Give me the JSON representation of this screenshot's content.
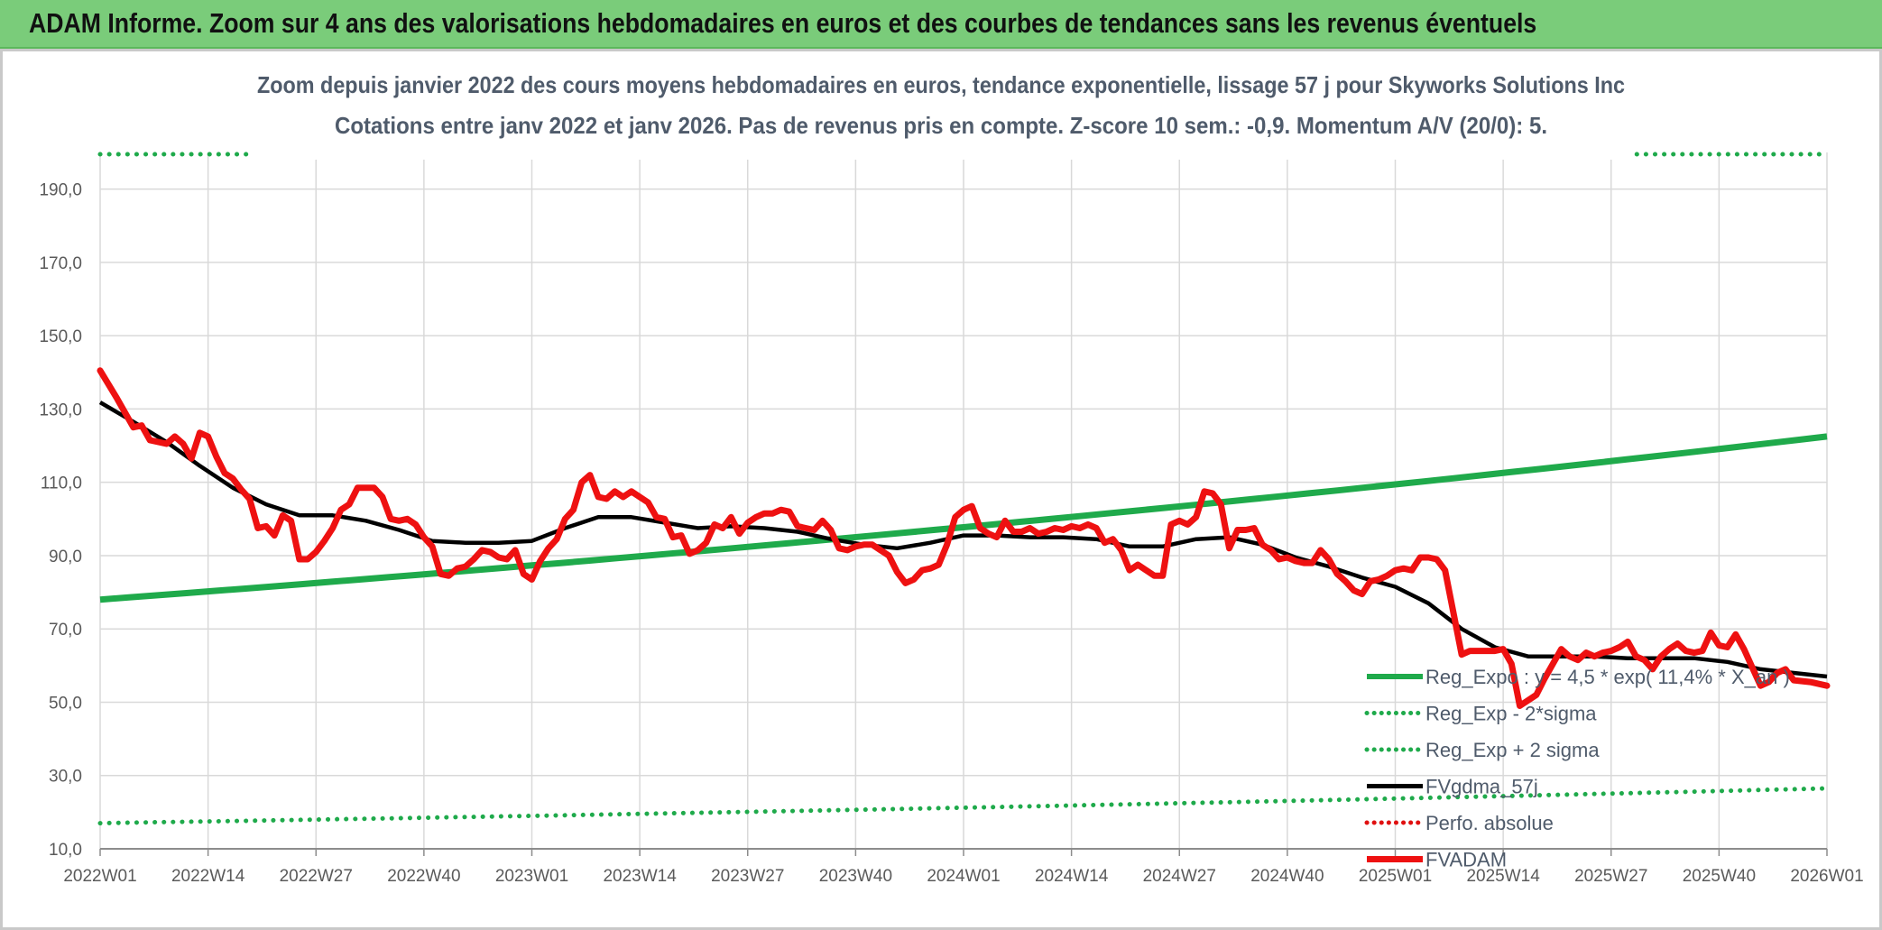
{
  "header": {
    "title": "ADAM Informe. Zoom sur 4 ans des valorisations hebdomadaires en euros et des courbes de tendances sans les revenus éventuels"
  },
  "colors": {
    "header_bg": "#7acc7a",
    "regression": "#1faa4b",
    "band": "#1faa4b",
    "smoothing": "#000000",
    "perfo": "#e01010",
    "price": "#ee1111",
    "grid": "#d9d9d9",
    "text": "#4f5b6b"
  },
  "chart_data": {
    "type": "line",
    "title": "Zoom depuis janvier 2022 des cours moyens hebdomadaires en euros, tendance exponentielle, lissage 57 j pour Skyworks Solutions Inc",
    "subtitle": "Cotations entre janv 2022 et janv 2026. Pas de revenus pris en compte. Z-score 10 sem.: -0,9. Momentum A/V (20/0): 5.",
    "xlabel": "",
    "ylabel": "",
    "ylim": [
      10,
      200
    ],
    "y_ticks": [
      "10,0",
      "30,0",
      "50,0",
      "70,0",
      "90,0",
      "110,0",
      "130,0",
      "150,0",
      "170,0",
      "190,0"
    ],
    "x_ticks": [
      "2022W01",
      "2022W14",
      "2022W27",
      "2022W40",
      "2023W01",
      "2023W14",
      "2023W27",
      "2023W40",
      "2024W01",
      "2024W14",
      "2024W27",
      "2024W40",
      "2025W01",
      "2025W14",
      "2025W27",
      "2025W40",
      "2026W01"
    ],
    "x_range_weeks": [
      0,
      208
    ],
    "grid": true,
    "legend_position": "bottom-right",
    "series": [
      {
        "name": "Reg_Expo : y = 4,5 * exp( 11,4% * X_an )",
        "style": "solid",
        "x": [
          0,
          208
        ],
        "values": [
          78.0,
          122.5
        ]
      },
      {
        "name": "Reg_Exp - 2*sigma",
        "style": "dotted",
        "x": [
          0,
          208
        ],
        "values": [
          17.0,
          26.5
        ]
      },
      {
        "name": "Reg_Exp + 2 sigma",
        "style": "dotted",
        "x": [
          0,
          18,
          184,
          208
        ],
        "values": [
          199.5,
          199.5,
          199.5,
          199.5
        ]
      },
      {
        "name": "FVgdma_57j",
        "style": "solid",
        "x": [
          0,
          4,
          8,
          12,
          16,
          20,
          24,
          28,
          32,
          36,
          40,
          44,
          48,
          52,
          56,
          60,
          64,
          68,
          72,
          76,
          80,
          84,
          88,
          92,
          96,
          100,
          104,
          108,
          112,
          116,
          120,
          124,
          128,
          132,
          136,
          140,
          144,
          148,
          152,
          156,
          160,
          164,
          168,
          172,
          176,
          180,
          184,
          188,
          192,
          196,
          200,
          204,
          208
        ],
        "values": [
          131.8,
          126.5,
          121.0,
          114.5,
          108.5,
          104.0,
          101.0,
          101.0,
          99.5,
          97.0,
          94.0,
          93.5,
          93.5,
          94.0,
          97.5,
          100.5,
          100.5,
          99.0,
          97.5,
          98.0,
          97.5,
          96.5,
          94.5,
          93.0,
          92.0,
          93.5,
          95.5,
          95.5,
          95.0,
          95.0,
          94.5,
          92.5,
          92.5,
          94.5,
          95.0,
          93.0,
          89.5,
          87.0,
          84.0,
          81.5,
          77.0,
          70.0,
          65.0,
          62.5,
          62.5,
          62.5,
          62.0,
          62.0,
          62.0,
          61.0,
          59.0,
          58.0,
          57.0
        ]
      },
      {
        "name": "Perfo. absolue",
        "style": "dotted",
        "x": [],
        "values": []
      },
      {
        "name": "FVADAM",
        "style": "solid-thick",
        "x": [
          0,
          2,
          4,
          5,
          6,
          7,
          8,
          9,
          10,
          11,
          12,
          13,
          14,
          15,
          16,
          17,
          18,
          19,
          20,
          21,
          22,
          23,
          24,
          25,
          26,
          27,
          28,
          29,
          30,
          31,
          32,
          33,
          34,
          35,
          36,
          37,
          38,
          39,
          40,
          41,
          42,
          43,
          44,
          45,
          46,
          47,
          48,
          49,
          50,
          51,
          52,
          53,
          54,
          55,
          56,
          57,
          58,
          59,
          60,
          61,
          62,
          63,
          64,
          65,
          66,
          67,
          68,
          69,
          70,
          71,
          72,
          73,
          74,
          75,
          76,
          77,
          78,
          79,
          80,
          81,
          82,
          83,
          84,
          85,
          86,
          87,
          88,
          89,
          90,
          91,
          92,
          93,
          94,
          95,
          96,
          97,
          98,
          99,
          100,
          101,
          102,
          103,
          104,
          105,
          106,
          107,
          108,
          109,
          110,
          111,
          112,
          113,
          114,
          115,
          116,
          117,
          118,
          119,
          120,
          121,
          122,
          123,
          124,
          125,
          126,
          127,
          128,
          129,
          130,
          131,
          132,
          133,
          134,
          135,
          136,
          137,
          138,
          139,
          140,
          141,
          142,
          143,
          144,
          145,
          146,
          147,
          148,
          149,
          150,
          151,
          152,
          153,
          154,
          155,
          156,
          157,
          158,
          159,
          160,
          161,
          162,
          163,
          164,
          165,
          166,
          167,
          168,
          169,
          170,
          171,
          172,
          173,
          174,
          175,
          176,
          177,
          178,
          179,
          180,
          181,
          182,
          183,
          184,
          185,
          186,
          187,
          188,
          189,
          190,
          191,
          192,
          193,
          194,
          195,
          196,
          197,
          198,
          199,
          200,
          201,
          202,
          203,
          204,
          206,
          208
        ],
        "values": [
          140.5,
          133.0,
          125.0,
          125.5,
          121.5,
          121.0,
          120.5,
          122.5,
          120.5,
          116.5,
          123.5,
          122.5,
          117.0,
          112.5,
          111.0,
          108.0,
          105.5,
          97.5,
          98.0,
          95.5,
          101.0,
          99.5,
          89.0,
          89.0,
          91.0,
          94.0,
          97.5,
          102.5,
          104.0,
          108.5,
          108.5,
          108.5,
          106.0,
          100.0,
          99.5,
          100.0,
          98.5,
          95.0,
          92.5,
          85.0,
          84.5,
          86.5,
          87.0,
          89.0,
          91.5,
          91.0,
          89.5,
          89.0,
          91.5,
          85.0,
          83.5,
          88.5,
          92.0,
          94.5,
          100.0,
          102.5,
          110.0,
          112.0,
          106.0,
          105.5,
          107.5,
          106.0,
          107.5,
          106.0,
          104.5,
          100.5,
          100.0,
          95.0,
          95.5,
          90.5,
          91.5,
          93.5,
          98.5,
          97.5,
          100.5,
          96.0,
          99.0,
          100.5,
          101.5,
          101.5,
          102.5,
          102.0,
          98.0,
          97.5,
          97.0,
          99.5,
          97.0,
          92.0,
          91.5,
          92.5,
          93.0,
          93.0,
          91.5,
          90.0,
          85.5,
          82.5,
          83.5,
          86.0,
          86.5,
          87.5,
          93.0,
          100.5,
          102.5,
          103.5,
          97.5,
          96.0,
          95.0,
          99.5,
          96.5,
          96.5,
          97.5,
          96.0,
          96.5,
          97.5,
          97.0,
          98.0,
          97.5,
          98.5,
          97.5,
          93.5,
          94.5,
          91.5,
          86.0,
          87.5,
          86.0,
          84.5,
          84.5,
          98.5,
          99.5,
          98.5,
          100.5,
          107.5,
          107.0,
          104.0,
          92.0,
          97.0,
          97.0,
          97.5,
          93.0,
          91.5,
          89.0,
          89.5,
          88.5,
          88.0,
          88.0,
          91.5,
          89.0,
          85.0,
          83.0,
          80.5,
          79.5,
          83.0,
          83.5,
          84.5,
          86.0,
          86.5,
          86.0,
          89.5,
          89.5,
          89.0,
          86.0,
          74.5,
          63.0,
          64.0,
          64.0,
          64.0,
          64.0,
          64.5,
          60.5,
          49.0,
          50.5,
          52.0,
          56.5,
          60.5,
          64.5,
          62.5,
          61.5,
          63.5,
          62.5,
          63.5,
          64.0,
          65.0,
          66.5,
          62.5,
          61.5,
          59.0,
          62.5,
          64.5,
          66.0,
          64.0,
          63.5,
          64.0,
          69.0,
          65.5,
          65.0,
          68.5,
          64.5,
          59.5,
          54.5,
          55.5,
          58.0,
          59.0,
          56.0,
          55.5,
          54.5
        ]
      }
    ]
  },
  "legend": [
    {
      "label": "Reg_Expo : y = 4,5 * exp( 11,4% * X_an )",
      "style": "solid",
      "color": "#1faa4b"
    },
    {
      "label": "Reg_Exp - 2*sigma",
      "style": "dotted",
      "color": "#1faa4b"
    },
    {
      "label": "Reg_Exp + 2 sigma",
      "style": "dotted",
      "color": "#1faa4b"
    },
    {
      "label": "FVgdma_57j",
      "style": "solid",
      "color": "#000000"
    },
    {
      "label": "Perfo. absolue",
      "style": "dotted",
      "color": "#e01010"
    },
    {
      "label": "FVADAM",
      "style": "solid-thick",
      "color": "#ee1111"
    }
  ]
}
